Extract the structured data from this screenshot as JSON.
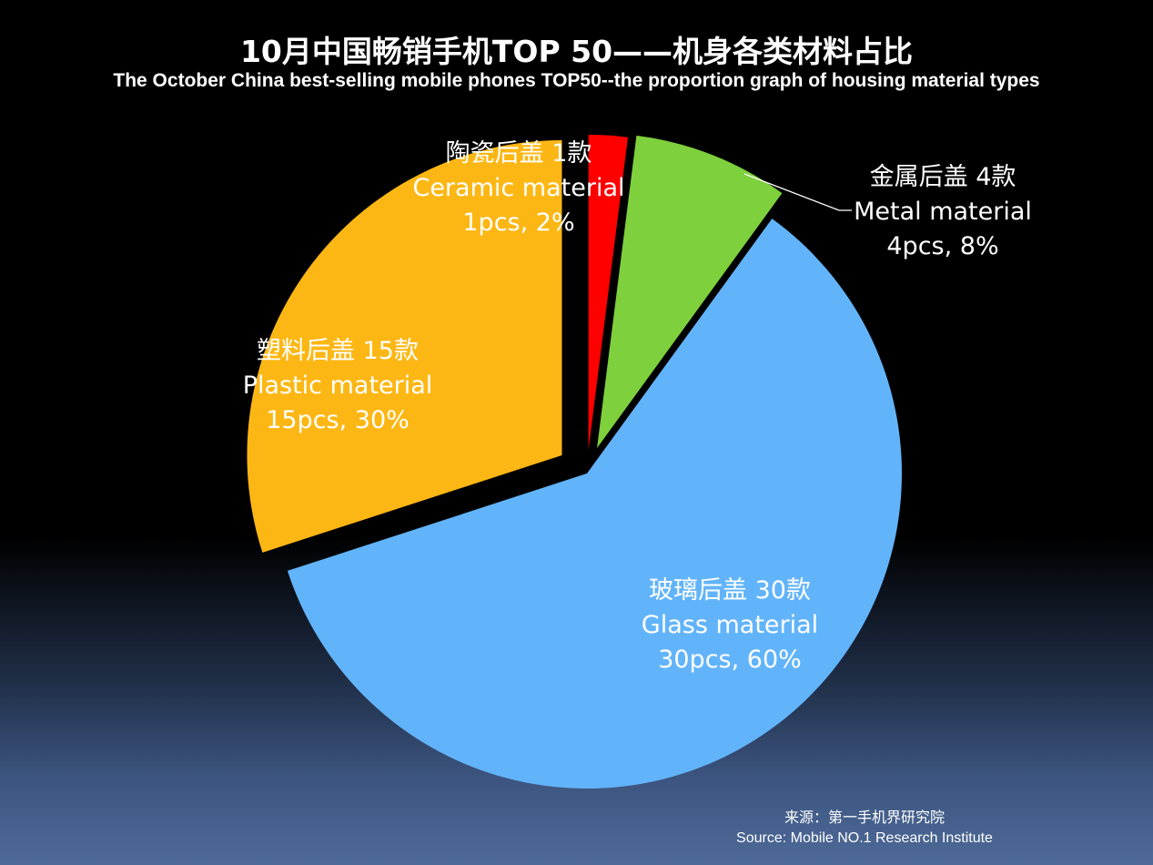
{
  "header": {
    "title_cn": "10月中国畅销手机TOP 50——机身各类材料占比",
    "title_en": "The October China best-selling mobile phones TOP50--the proportion graph of housing material types"
  },
  "chart_data": {
    "type": "pie",
    "title": "10月中国畅销手机TOP 50——机身各类材料占比",
    "subtitle": "The October China best-selling mobile phones TOP50--the proportion graph of housing material types",
    "slices": [
      {
        "cn": "陶瓷后盖 1款",
        "en": "Ceramic material",
        "detail": "1pcs, 2%",
        "count": 1,
        "percent": 2,
        "color": "#ff0000"
      },
      {
        "cn": "金属后盖 4款",
        "en": "Metal material",
        "detail": "4pcs,  8%",
        "count": 4,
        "percent": 8,
        "color": "#7ed03c"
      },
      {
        "cn": "玻璃后盖 30款",
        "en": "Glass material",
        "detail": "30pcs, 60%",
        "count": 30,
        "percent": 60,
        "color": "#62b4fa"
      },
      {
        "cn": "塑料后盖 15款",
        "en": "Plastic material",
        "detail": "15pcs,  30%",
        "count": 15,
        "percent": 30,
        "color": "#fdb714"
      }
    ]
  },
  "footer": {
    "source_cn": "来源：第一手机界研究院",
    "source_en": "Source: Mobile NO.1 Research Institute"
  }
}
